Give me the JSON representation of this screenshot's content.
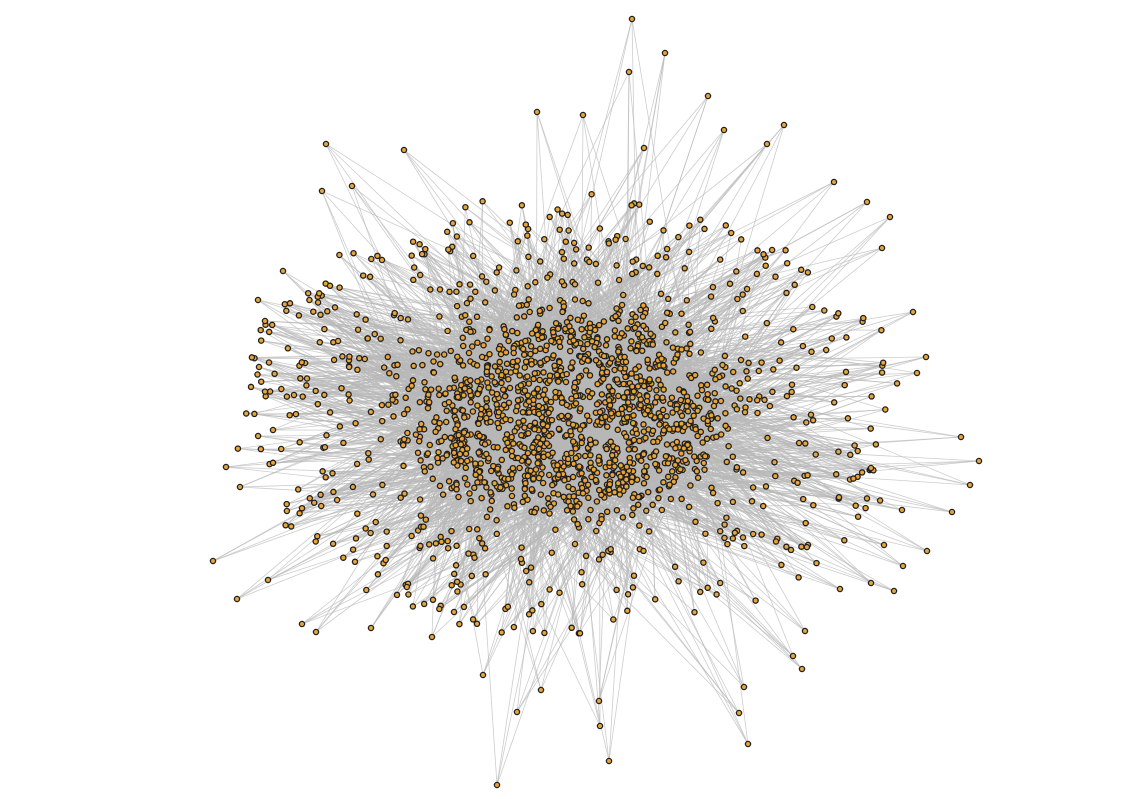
{
  "diagram": {
    "type": "network-graph",
    "layout": "force-directed",
    "colors": {
      "background": "#ffffff",
      "edge": "#b8b8b8",
      "node_fill": "#e8a53a",
      "node_stroke": "#1e1e1e"
    },
    "labels": []
  }
}
